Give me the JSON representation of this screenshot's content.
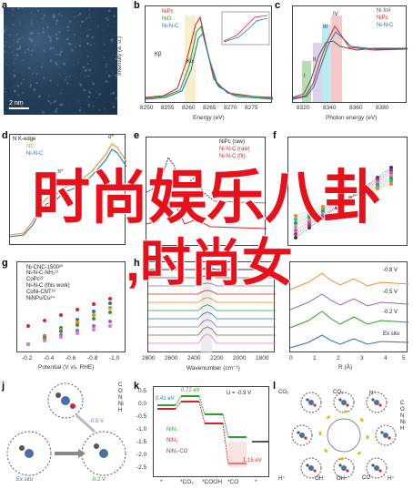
{
  "panels": {
    "a": {
      "letter": "a",
      "scalebar": "2 nm"
    },
    "b": {
      "letter": "b",
      "legend": [
        "NiPc",
        "NiO",
        "Ni-N-C"
      ],
      "xlabel": "Energy (eV)",
      "ylabel": "Intensity (a. u.)",
      "xticks": [
        "8250",
        "8255",
        "8260",
        "8265",
        "8270",
        "8275"
      ],
      "annotations": [
        "Kβ",
        "Kα"
      ]
    },
    "c": {
      "letter": "c",
      "legend": [
        "Ni foil",
        "NiPc",
        "Ni-N-C"
      ],
      "xlabel": "Photon energy (eV)",
      "ylabel": "Normalized Intensity (a. u.)",
      "xticks": [
        "8320",
        "8340",
        "8360",
        "8380"
      ],
      "annotations": [
        "I",
        "II",
        "III",
        "IV"
      ]
    },
    "d": {
      "letter": "d",
      "title": "N K-edge",
      "legend": [
        "NC",
        "Ni-N-C"
      ],
      "ylabel": "Intensity (a. u.)",
      "annotations": [
        "π*",
        "σ*"
      ]
    },
    "e": {
      "letter": "e",
      "legend": [
        "NiPc (raw)",
        "Ni-N-C (raw)",
        "Ni-N-C (fit)"
      ],
      "ylabel": "|χ(R)| (Å⁻³)"
    },
    "f": {
      "letter": "f",
      "ylabel": "TOF (site⁻¹ h⁻¹)"
    },
    "g": {
      "letter": "g",
      "legend": [
        "Ni-CNC-1500²⁰",
        "Ni-N-C-NH₂²¹",
        "CoPc²²",
        "Ni-N-C (this work)",
        "CoNi-CNT²³",
        "NiNPs/Cu²⁴"
      ],
      "xlabel": "Potential (V vs. RHE)",
      "ylabel": "TOF (h⁻¹)",
      "xticks": [
        "-0.2",
        "-0.4",
        "-0.6",
        "-0.8",
        "-1.0"
      ]
    },
    "h": {
      "letter": "h",
      "xlabel": "Wavenumber (cm⁻¹)",
      "ylabel": "Absorbance",
      "xticks": [
        "2800",
        "2600",
        "2400",
        "2200",
        "2000",
        "1800"
      ],
      "potentials": [
        "0 V",
        "-0.1V",
        "-0.2V",
        "-0.3V",
        "-0.4V",
        "-0.5V",
        "-0.6V",
        "-0.7V",
        "-0.8V",
        "-0.9V"
      ]
    },
    "i": {
      "letter": "i",
      "labels": [
        "-0.8 V",
        "-0.5 V",
        "-0.2 V",
        "Ex situ"
      ],
      "xlabel": "R (Å)",
      "ylabel": "|FT(k³χ)|",
      "xticks": [
        "0",
        "1",
        "2",
        "3",
        "4",
        "5"
      ]
    },
    "j": {
      "letter": "j",
      "labels": [
        "-0.5 V",
        "-0.2 V",
        "Ex situ"
      ],
      "legend": [
        "C",
        "O",
        "N",
        "Ni",
        "H"
      ]
    },
    "k": {
      "letter": "k",
      "condition": "U = -0.9 V",
      "energies": [
        "0.41 eV",
        "0.72 eV",
        "1.15 eV"
      ],
      "ylabel": "ΔG (eV)",
      "legend": [
        "NiN₂",
        "NiN₃",
        "NiN₂-CO"
      ],
      "xlabels": [
        "*",
        "*CO₂",
        "*COOH",
        "*CO",
        "*"
      ],
      "yticks": [
        "0.5",
        "0.0",
        "-0.5",
        "-1.0",
        "-1.5",
        "-2.0",
        "-2.5"
      ]
    },
    "l": {
      "letter": "l",
      "labels": [
        "CO₂",
        "CO₂",
        "H⁺",
        "H⁺",
        "OH⁻",
        "OH⁻",
        "CO",
        "H⁺"
      ],
      "legend": [
        "C",
        "O",
        "N",
        "Ni",
        "H"
      ]
    }
  },
  "overlay": {
    "line1": "时尚娱乐八卦",
    "line2": ",时尚女"
  },
  "colors": {
    "nipc": "#d62728",
    "nio": "#2ca02c",
    "ninc": "#1f77b4",
    "overlay": "#e8101a"
  }
}
